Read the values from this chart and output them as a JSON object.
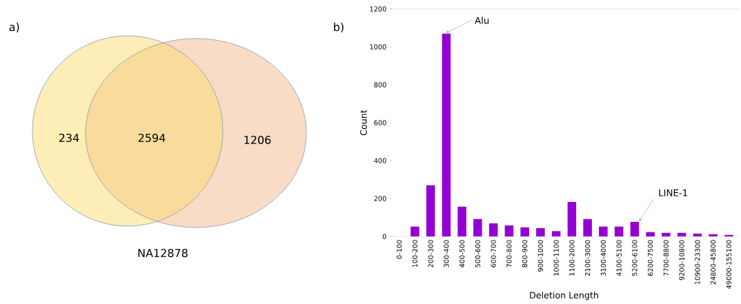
{
  "chart_data": [
    {
      "type": "other",
      "title": "a)",
      "categories": [
        null,
        null,
        null
      ],
      "values": [
        234,
        2594,
        1206
      ],
      "data_labels": true,
      "colors": [
        "#fdedb6",
        "#f9dc9c",
        "#f9dcc6"
      ],
      "annotations": [
        "NA12878"
      ]
    },
    {
      "type": "bar",
      "title": "b)",
      "xlabel": "Deletion Length",
      "ylabel": "Count",
      "categories": [
        "0-100",
        "100-200",
        "200-300",
        "300-400",
        "400-500",
        "500-600",
        "600-700",
        "700-800",
        "800-900",
        "900-1000",
        "1000-1100",
        "1100-2000",
        "2100-3000",
        "3100-4000",
        "4100-5100",
        "5200-6100",
        "6200-7500",
        "7700-8800",
        "9200-10800",
        "10900-23300",
        "24800-45800",
        "49000-155100"
      ],
      "values": [
        0,
        52,
        270,
        1070,
        157,
        92,
        69,
        58,
        48,
        44,
        28,
        182,
        92,
        52,
        52,
        77,
        23,
        19,
        19,
        15,
        12,
        8
      ],
      "color": "#9400d3",
      "ylim": [
        0,
        1200
      ],
      "yticks": [
        0,
        200,
        400,
        600,
        800,
        1000,
        1200
      ],
      "grid": false,
      "annotations": [
        {
          "text": "Alu",
          "x": "300-400",
          "y": 1070
        },
        {
          "text": "LINE-1",
          "x": "5200-6100",
          "y": 77
        }
      ]
    }
  ]
}
